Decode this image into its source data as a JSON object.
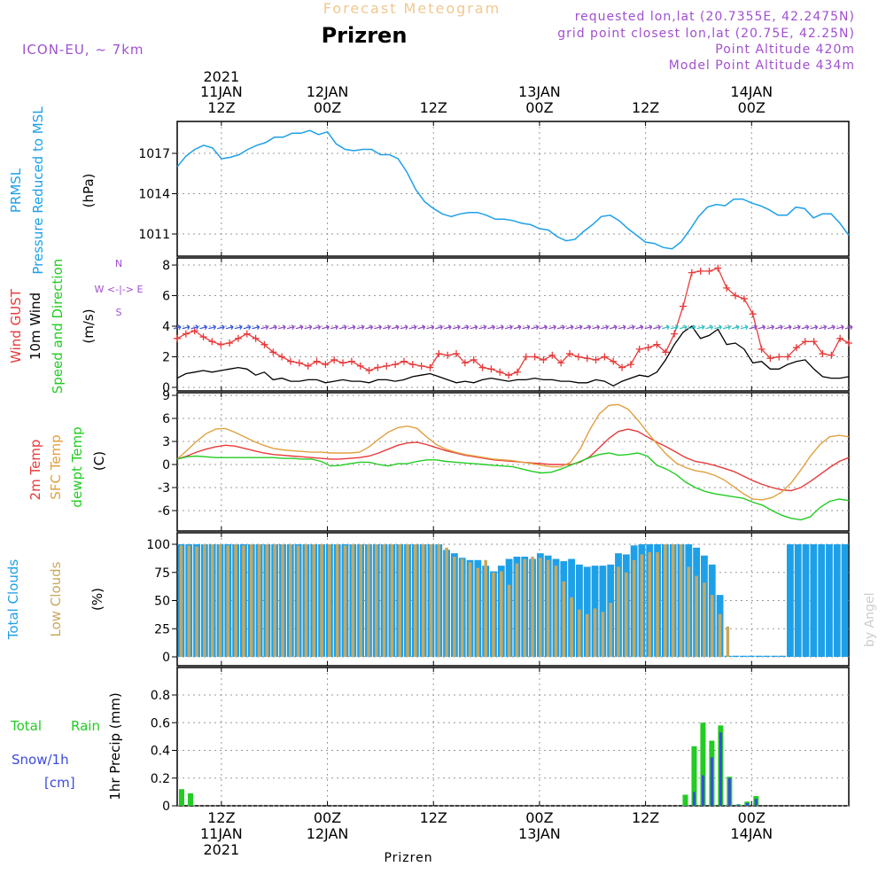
{
  "header": {
    "watermark_title": "Forecast Meteogram",
    "location": "Prizren",
    "model": "ICON-EU, ~ 7km",
    "requested": "requested lon,lat (20.7355E, 42.2475N)",
    "grid_point": "grid point closest lon,lat (20.75E, 42.25N)",
    "point_altitude": "Point Altitude 420m",
    "model_altitude": "Model Point Altitude 434m",
    "credit": "by Angel",
    "footer_location": "Prizren"
  },
  "colors": {
    "pressure": "#1ea0e8",
    "gust": "#e83a3a",
    "wind": "#000000",
    "temp2m": "#e83a3a",
    "sfc": "#e0a040",
    "dewpt": "#22cc22",
    "total_clouds": "#1ea0e8",
    "low_clouds": "#c8a860",
    "rain": "#22cc22",
    "snow": "#3a4ae0",
    "purple": "#a050d0",
    "watermark": "#f0c890"
  },
  "time_axis": {
    "top_year": "2021",
    "ticks": [
      {
        "hour": 0,
        "day": "11JAN",
        "time": "12Z"
      },
      {
        "hour": 12,
        "day": "12JAN",
        "time": "00Z"
      },
      {
        "hour": 24,
        "day": "",
        "time": "12Z"
      },
      {
        "hour": 36,
        "day": "13JAN",
        "time": "00Z"
      },
      {
        "hour": 48,
        "day": "",
        "time": "12Z"
      },
      {
        "hour": 60,
        "day": "14JAN",
        "time": "00Z"
      }
    ],
    "start_hour": -5,
    "end_hour": 71
  },
  "panel_labels": {
    "pressure": [
      "PRMSL",
      "Pressure Reduced to MSL",
      "(hPa)"
    ],
    "wind": [
      "Wind GUST",
      "10m Wind",
      "Speed and Direction",
      "(m/s)"
    ],
    "compass": [
      "N",
      "W <-|-> E",
      "S"
    ],
    "temp": [
      "2m Temp",
      "SFC Temp",
      "dewpt Temp",
      "(C)"
    ],
    "clouds": [
      "Total Clouds",
      "Low Clouds",
      "(%)"
    ],
    "precip_left": [
      "Total",
      "Rain",
      "Snow/1h",
      "[cm]"
    ],
    "precip_axis": "1hr Precip (mm)"
  },
  "chart_data": [
    {
      "id": "pressure",
      "type": "line",
      "title": "PRMSL Pressure Reduced to MSL",
      "ylabel": "(hPa)",
      "ylim": [
        1009,
        1019
      ],
      "yticks": [
        1011,
        1014,
        1017
      ],
      "series": [
        {
          "name": "PRMSL",
          "x": [
            -5,
            -4,
            -3,
            -2,
            -1,
            0,
            1,
            2,
            3,
            4,
            5,
            6,
            7,
            8,
            9,
            10,
            11,
            12,
            13,
            14,
            15,
            16,
            17,
            18,
            19,
            20,
            21,
            22,
            23,
            24,
            25,
            26,
            27,
            28,
            29,
            30,
            31,
            32,
            33,
            34,
            35,
            36,
            37,
            38,
            39,
            40,
            41,
            42,
            43,
            44,
            45,
            46,
            47,
            48,
            49,
            50,
            51,
            52,
            53,
            54,
            55,
            56,
            57,
            58,
            59,
            60,
            61,
            62,
            63,
            64,
            65,
            66,
            67,
            68,
            69,
            70,
            71
          ],
          "values": [
            1016.0,
            1016.8,
            1017.3,
            1017.6,
            1017.4,
            1016.6,
            1016.7,
            1016.9,
            1017.3,
            1017.6,
            1017.8,
            1018.2,
            1018.2,
            1018.5,
            1018.5,
            1018.7,
            1018.4,
            1018.6,
            1017.7,
            1017.3,
            1017.2,
            1017.3,
            1017.3,
            1016.9,
            1016.9,
            1016.6,
            1015.6,
            1014.3,
            1013.4,
            1012.9,
            1012.5,
            1012.3,
            1012.5,
            1012.6,
            1012.6,
            1012.4,
            1012.1,
            1012.1,
            1012.0,
            1011.8,
            1011.7,
            1011.4,
            1011.3,
            1010.8,
            1010.5,
            1010.6,
            1011.2,
            1011.7,
            1012.3,
            1012.4,
            1012.0,
            1011.4,
            1010.9,
            1010.4,
            1010.3,
            1010.0,
            1009.9,
            1010.4,
            1011.3,
            1012.3,
            1013.0,
            1013.2,
            1013.1,
            1013.6,
            1013.6,
            1013.3,
            1013.1,
            1012.8,
            1012.4,
            1012.4,
            1013.0,
            1012.9,
            1012.2,
            1012.5,
            1012.5,
            1011.8,
            1010.9
          ]
        }
      ]
    },
    {
      "id": "wind",
      "type": "line",
      "title": "Wind GUST / 10m Wind Speed and Direction",
      "ylabel": "(m/s)",
      "ylim": [
        0,
        8.5
      ],
      "yticks": [
        0,
        2,
        4,
        6,
        8
      ],
      "series": [
        {
          "name": "Wind GUST",
          "values": [
            3.2,
            3.5,
            3.7,
            3.3,
            3.0,
            2.8,
            2.9,
            3.2,
            3.5,
            3.2,
            2.8,
            2.3,
            2.0,
            1.7,
            1.6,
            1.4,
            1.7,
            1.5,
            1.8,
            1.6,
            1.7,
            1.4,
            1.1,
            1.3,
            1.4,
            1.5,
            1.7,
            1.5,
            1.4,
            1.3,
            2.2,
            2.1,
            2.2,
            1.6,
            1.8,
            1.3,
            1.2,
            1.0,
            0.8,
            1.0,
            2.0,
            2.0,
            1.8,
            2.1,
            1.6,
            2.2,
            2.0,
            1.9,
            1.8,
            2.0,
            1.7,
            1.3,
            1.5,
            2.5,
            2.6,
            2.8,
            2.3,
            3.5,
            5.3,
            7.5,
            7.6,
            7.6,
            7.8,
            6.5,
            6.0,
            5.8,
            4.8,
            2.5,
            1.9,
            2.0,
            2.0,
            2.6,
            3.0,
            3.0,
            2.2,
            2.1,
            3.2,
            2.9
          ]
        },
        {
          "name": "10m Wind",
          "values": [
            0.6,
            0.9,
            1.0,
            1.1,
            1.0,
            1.1,
            1.2,
            1.3,
            1.2,
            0.8,
            1.0,
            0.5,
            0.6,
            0.4,
            0.4,
            0.5,
            0.5,
            0.3,
            0.4,
            0.5,
            0.4,
            0.4,
            0.3,
            0.5,
            0.5,
            0.4,
            0.5,
            0.7,
            0.8,
            0.9,
            0.7,
            0.5,
            0.3,
            0.4,
            0.3,
            0.5,
            0.6,
            0.5,
            0.4,
            0.5,
            0.5,
            0.6,
            0.5,
            0.5,
            0.4,
            0.4,
            0.3,
            0.3,
            0.5,
            0.4,
            0.1,
            0.4,
            0.6,
            0.8,
            0.7,
            1.0,
            1.8,
            2.8,
            3.6,
            4.0,
            3.2,
            3.4,
            3.8,
            2.8,
            2.9,
            2.5,
            1.6,
            1.7,
            1.2,
            1.2,
            1.5,
            1.7,
            1.8,
            1.2,
            0.7,
            0.6,
            0.6,
            0.7
          ]
        }
      ]
    },
    {
      "id": "temperature",
      "type": "line",
      "title": "2m Temp / SFC Temp / dewpt Temp",
      "ylabel": "(C)",
      "ylim": [
        -9,
        9
      ],
      "yticks": [
        -6,
        -3,
        0,
        3,
        6,
        9
      ],
      "series": [
        {
          "name": "2m Temp",
          "values": [
            0.7,
            1.1,
            1.6,
            2.0,
            2.3,
            2.5,
            2.4,
            2.1,
            1.8,
            1.5,
            1.3,
            1.2,
            1.1,
            1.0,
            0.9,
            0.8,
            0.7,
            0.7,
            0.8,
            0.9,
            1.1,
            1.5,
            2.0,
            2.5,
            2.8,
            2.9,
            2.6,
            2.2,
            1.8,
            1.5,
            1.2,
            1.0,
            0.8,
            0.6,
            0.5,
            0.4,
            0.3,
            0.2,
            0.1,
            0.0,
            0.0,
            0.0,
            0.3,
            1.0,
            2.2,
            3.4,
            4.3,
            4.6,
            4.3,
            3.6,
            2.9,
            2.3,
            1.6,
            0.9,
            0.4,
            0.2,
            -0.1,
            -0.5,
            -0.9,
            -1.5,
            -2.1,
            -2.6,
            -3.0,
            -3.3,
            -3.4,
            -3.0,
            -2.2,
            -1.3,
            -0.4,
            0.4,
            0.9
          ]
        },
        {
          "name": "SFC Temp",
          "values": [
            0.7,
            1.8,
            3.0,
            4.0,
            4.6,
            4.7,
            4.2,
            3.6,
            3.0,
            2.5,
            2.1,
            1.9,
            1.8,
            1.7,
            1.6,
            1.6,
            1.5,
            1.5,
            1.5,
            1.6,
            2.3,
            3.3,
            4.2,
            4.8,
            5.0,
            4.7,
            3.6,
            2.6,
            2.0,
            1.6,
            1.3,
            1.1,
            0.9,
            0.7,
            0.6,
            0.5,
            0.3,
            0.1,
            -0.1,
            -0.3,
            -0.3,
            0.3,
            2.0,
            4.5,
            6.6,
            7.7,
            7.8,
            7.2,
            5.8,
            4.2,
            2.7,
            1.3,
            0.2,
            -0.4,
            -0.8,
            -1.0,
            -1.4,
            -2.0,
            -2.9,
            -3.8,
            -4.5,
            -4.6,
            -4.3,
            -3.6,
            -2.4,
            -0.7,
            1.1,
            2.6,
            3.6,
            3.8,
            3.6
          ]
        },
        {
          "name": "dewpt Temp",
          "values": [
            0.7,
            1.0,
            1.1,
            1.0,
            0.9,
            0.9,
            0.9,
            0.9,
            0.9,
            0.9,
            0.9,
            0.8,
            0.8,
            0.7,
            0.7,
            0.4,
            -0.2,
            -0.1,
            0.1,
            0.3,
            0.3,
            0.0,
            -0.2,
            0.1,
            0.1,
            0.4,
            0.6,
            0.6,
            0.4,
            0.3,
            0.2,
            0.1,
            0.0,
            -0.1,
            -0.2,
            -0.3,
            -0.6,
            -0.9,
            -1.1,
            -1.0,
            -0.6,
            -0.1,
            0.4,
            0.9,
            1.3,
            1.5,
            1.2,
            1.3,
            1.5,
            1.1,
            -0.1,
            -0.6,
            -1.3,
            -2.3,
            -3.0,
            -3.5,
            -3.8,
            -4.0,
            -4.2,
            -4.4,
            -4.9,
            -5.3,
            -6.0,
            -6.6,
            -7.0,
            -7.2,
            -6.8,
            -5.6,
            -4.8,
            -4.5,
            -4.7
          ]
        }
      ]
    },
    {
      "id": "clouds",
      "type": "bar",
      "title": "Total Clouds / Low Clouds",
      "ylabel": "(%)",
      "ylim": [
        0,
        100
      ],
      "yticks": [
        0,
        25,
        50,
        75,
        100
      ],
      "series": [
        {
          "name": "Total Clouds",
          "values": [
            100,
            100,
            100,
            100,
            100,
            100,
            100,
            100,
            100,
            100,
            100,
            100,
            100,
            100,
            100,
            100,
            100,
            100,
            100,
            100,
            100,
            100,
            100,
            100,
            100,
            100,
            100,
            100,
            100,
            100,
            100,
            100,
            100,
            100,
            95,
            92,
            88,
            86,
            86,
            81,
            76,
            81,
            87,
            89,
            89,
            87,
            92,
            90,
            87,
            85,
            87,
            82,
            80,
            81,
            81,
            82,
            92,
            91,
            99,
            100,
            100,
            100,
            100,
            100,
            100,
            100,
            97,
            90,
            82,
            55,
            1,
            1,
            1,
            1,
            1,
            1,
            1,
            1,
            100,
            100,
            100,
            100,
            100,
            100,
            100,
            100
          ]
        },
        {
          "name": "Low Clouds",
          "values": [
            99,
            99,
            98,
            100,
            100,
            100,
            99,
            100,
            99,
            100,
            100,
            100,
            100,
            100,
            100,
            99,
            100,
            100,
            100,
            100,
            100,
            99,
            100,
            100,
            100,
            100,
            100,
            100,
            100,
            100,
            100,
            100,
            100,
            100,
            97,
            89,
            87,
            84,
            79,
            86,
            75,
            76,
            64,
            83,
            87,
            89,
            88,
            86,
            81,
            67,
            53,
            42,
            38,
            43,
            40,
            48,
            80,
            75,
            86,
            91,
            93,
            93,
            100,
            100,
            100,
            80,
            72,
            66,
            55,
            38,
            27,
            0,
            0,
            0,
            0,
            0,
            0,
            0,
            0,
            0,
            0,
            0,
            0,
            0,
            0,
            0,
            0,
            0
          ]
        }
      ]
    },
    {
      "id": "precip",
      "type": "bar",
      "title": "1hr Precip",
      "ylabel": "1hr Precip (mm)",
      "ylim": [
        0,
        1.0
      ],
      "yticks": [
        0,
        0.2,
        0.4,
        0.6,
        0.8
      ],
      "series": [
        {
          "name": "Total Rain",
          "points": [
            [
              -4.5,
              0.12
            ],
            [
              -3.5,
              0.09
            ],
            [
              52.5,
              0.08
            ],
            [
              53.5,
              0.43
            ],
            [
              54.5,
              0.6
            ],
            [
              55.5,
              0.47
            ],
            [
              56.5,
              0.58
            ],
            [
              57.5,
              0.21
            ],
            [
              58.5,
              0.01
            ],
            [
              59.5,
              0.03
            ],
            [
              60.5,
              0.07
            ]
          ]
        },
        {
          "name": "Snow/1h",
          "points": [
            [
              53.5,
              0.1
            ],
            [
              54.5,
              0.22
            ],
            [
              55.5,
              0.35
            ],
            [
              56.5,
              0.53
            ],
            [
              57.5,
              0.2
            ],
            [
              58.5,
              0.01
            ],
            [
              59.5,
              0.02
            ],
            [
              60.5,
              0.05
            ]
          ]
        }
      ]
    }
  ]
}
